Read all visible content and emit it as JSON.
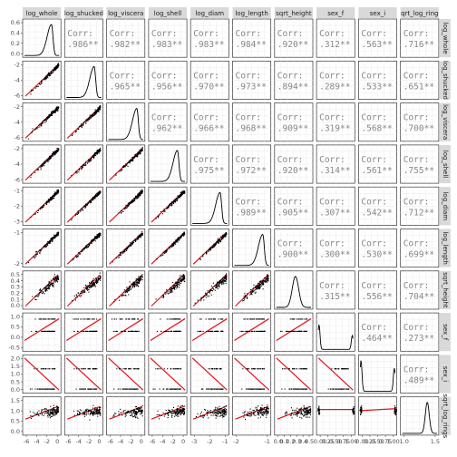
{
  "chart_data": {
    "type": "scatter",
    "variables": [
      "log_whole",
      "log_shucked",
      "log_viscera",
      "log_shell",
      "log_diam",
      "log_length",
      "sqrt_height",
      "sex_f",
      "sex_i",
      "sqrt_log_rings"
    ],
    "column_strip_labels": [
      "log_whole",
      "log_shucked",
      "log_viscera",
      "log_shell",
      "log_diam",
      "log_length",
      "sqrt_height",
      "sex_f",
      "sex_i",
      "qrt_log_ring"
    ],
    "row_strip_labels": [
      "log_whole",
      "log_shucked",
      "log_viscera",
      "log_shell",
      "log_diam",
      "log_length",
      "sqrt_height",
      "sex_f",
      "sex_i",
      "sqrt_log_rings"
    ],
    "correlation_label": "Corr:",
    "correlations": [
      {
        "row": 0,
        "col": 1,
        "value": ".986**"
      },
      {
        "row": 0,
        "col": 2,
        "value": ".982**"
      },
      {
        "row": 0,
        "col": 3,
        "value": ".983**"
      },
      {
        "row": 0,
        "col": 4,
        "value": ".983**"
      },
      {
        "row": 0,
        "col": 5,
        "value": ".984**"
      },
      {
        "row": 0,
        "col": 6,
        "value": ".920**"
      },
      {
        "row": 0,
        "col": 7,
        "value": ".312**"
      },
      {
        "row": 0,
        "col": 8,
        "value": ".563**"
      },
      {
        "row": 0,
        "col": 9,
        "value": ".716**"
      },
      {
        "row": 1,
        "col": 2,
        "value": ".965**"
      },
      {
        "row": 1,
        "col": 3,
        "value": ".956**"
      },
      {
        "row": 1,
        "col": 4,
        "value": ".970**"
      },
      {
        "row": 1,
        "col": 5,
        "value": ".973**"
      },
      {
        "row": 1,
        "col": 6,
        "value": ".894**"
      },
      {
        "row": 1,
        "col": 7,
        "value": ".289**"
      },
      {
        "row": 1,
        "col": 8,
        "value": ".533**"
      },
      {
        "row": 1,
        "col": 9,
        "value": ".651**"
      },
      {
        "row": 2,
        "col": 3,
        "value": ".962**"
      },
      {
        "row": 2,
        "col": 4,
        "value": ".966**"
      },
      {
        "row": 2,
        "col": 5,
        "value": ".968**"
      },
      {
        "row": 2,
        "col": 6,
        "value": ".909**"
      },
      {
        "row": 2,
        "col": 7,
        "value": ".319**"
      },
      {
        "row": 2,
        "col": 8,
        "value": ".568**"
      },
      {
        "row": 2,
        "col": 9,
        "value": ".700**"
      },
      {
        "row": 3,
        "col": 4,
        "value": ".975**"
      },
      {
        "row": 3,
        "col": 5,
        "value": ".972**"
      },
      {
        "row": 3,
        "col": 6,
        "value": ".920**"
      },
      {
        "row": 3,
        "col": 7,
        "value": ".314**"
      },
      {
        "row": 3,
        "col": 8,
        "value": ".561**"
      },
      {
        "row": 3,
        "col": 9,
        "value": ".755**"
      },
      {
        "row": 4,
        "col": 5,
        "value": ".989**"
      },
      {
        "row": 4,
        "col": 6,
        "value": ".905**"
      },
      {
        "row": 4,
        "col": 7,
        "value": ".307**"
      },
      {
        "row": 4,
        "col": 8,
        "value": ".542**"
      },
      {
        "row": 4,
        "col": 9,
        "value": ".712**"
      },
      {
        "row": 5,
        "col": 6,
        "value": ".900**"
      },
      {
        "row": 5,
        "col": 7,
        "value": ".300**"
      },
      {
        "row": 5,
        "col": 8,
        "value": ".530**"
      },
      {
        "row": 5,
        "col": 9,
        "value": ".699**"
      },
      {
        "row": 6,
        "col": 7,
        "value": ".315**"
      },
      {
        "row": 6,
        "col": 8,
        "value": ".556**"
      },
      {
        "row": 6,
        "col": 9,
        "value": ".704**"
      },
      {
        "row": 7,
        "col": 8,
        "value": ".464**"
      },
      {
        "row": 7,
        "col": 9,
        "value": ".273**"
      },
      {
        "row": 8,
        "col": 9,
        "value": ".489**"
      }
    ],
    "x_axis_ticks": [
      [
        "-6",
        "-4",
        "-2",
        "0"
      ],
      [
        "-6",
        "-4",
        "-2",
        "0"
      ],
      [
        "-6",
        "-4",
        "-2",
        "0"
      ],
      [
        "-6",
        "-4",
        "-2",
        "0"
      ],
      [
        "-3",
        "-2",
        "-1"
      ],
      [
        "-2",
        "-1"
      ],
      [
        "0.0",
        "0.1",
        "0.2",
        "0.3",
        "0.4",
        "0.5"
      ],
      [
        "0.00",
        "0.25",
        "0.50",
        "0.75",
        "1.00"
      ],
      [
        "0.00",
        "0.25",
        "0.50",
        "0.75",
        "1.00"
      ],
      [
        "1.0",
        "1.5"
      ]
    ],
    "y_axis_ticks": [
      [
        "0.6",
        "0.4",
        "0.2",
        "0.0"
      ],
      [
        "-2",
        "-4",
        "-6"
      ],
      [
        "-2",
        "-4",
        "-6"
      ],
      [
        "-2",
        "-4",
        "-6"
      ],
      [
        "-1",
        "-2",
        "-3"
      ],
      [
        "-1",
        "-2"
      ],
      [
        "0.5",
        "0.4",
        "0.3",
        "0.2",
        "0.1",
        "0.0"
      ],
      [
        "1.0",
        "0.5",
        "0.0",
        "-0.5"
      ],
      [
        "2.0",
        "1.5",
        "1.0",
        "0.5",
        "0.0"
      ],
      [
        "1.5",
        "1.0",
        "0.5",
        "0.0"
      ]
    ],
    "lower_panels": "scatter with red linear fit line",
    "diagonal_panels": "density curve",
    "upper_panels": "correlation coefficient text",
    "grid": true
  }
}
